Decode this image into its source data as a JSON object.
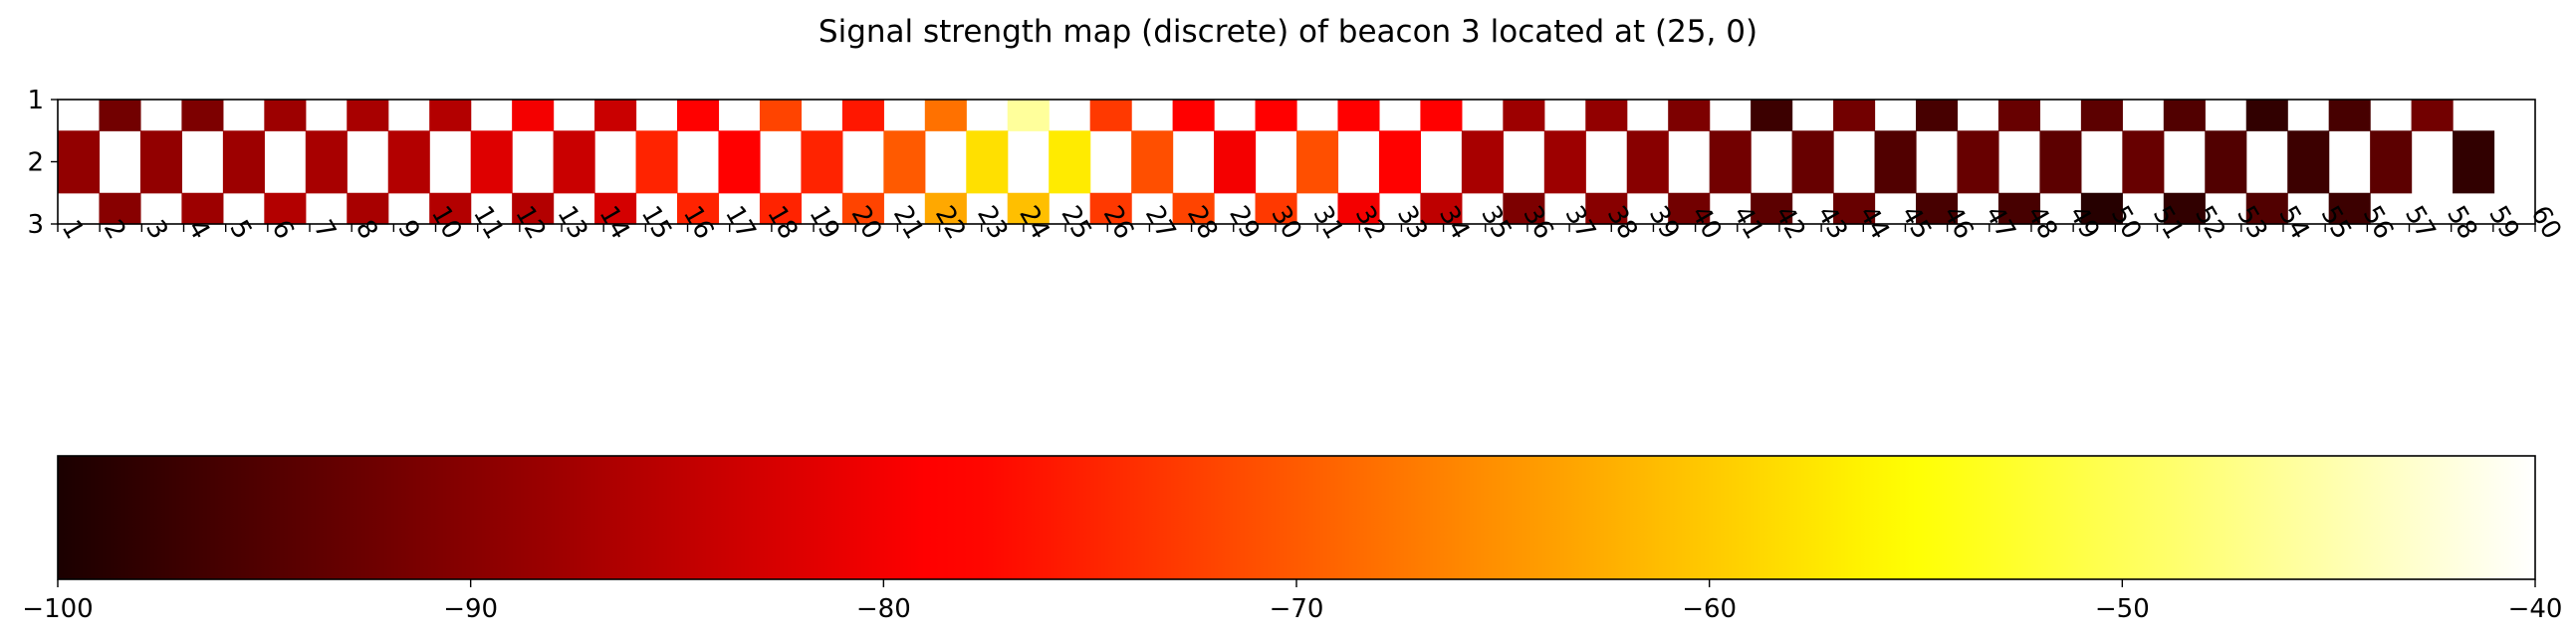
{
  "chart_data": {
    "type": "heatmap",
    "title": "Signal strength map (discrete) of beacon 3 located at (25, 0)",
    "x_ticks": [
      1,
      2,
      3,
      4,
      5,
      6,
      7,
      8,
      9,
      10,
      11,
      12,
      13,
      14,
      15,
      16,
      17,
      18,
      19,
      20,
      21,
      22,
      23,
      24,
      25,
      26,
      27,
      28,
      29,
      30,
      31,
      32,
      33,
      34,
      35,
      36,
      37,
      38,
      39,
      40,
      41,
      42,
      43,
      44,
      45,
      46,
      47,
      48,
      49,
      50,
      51,
      52,
      53,
      54,
      55,
      56,
      57,
      58,
      59,
      60
    ],
    "y_ticks": [
      1,
      2,
      3
    ],
    "rows": [
      [
        null,
        -92,
        null,
        -91,
        null,
        -88,
        null,
        -87,
        null,
        -86,
        null,
        -80,
        null,
        -84,
        null,
        -78,
        null,
        -72,
        null,
        -76,
        null,
        -68,
        null,
        -46,
        null,
        -73,
        null,
        -79,
        null,
        -79,
        null,
        -79,
        null,
        -79,
        null,
        -88,
        null,
        -89,
        null,
        -91,
        null,
        -97,
        null,
        -92,
        null,
        -96,
        null,
        -93,
        null,
        -94,
        null,
        -95,
        null,
        -98,
        null,
        -96,
        null,
        -92,
        null
      ],
      [
        -89,
        null,
        -89,
        null,
        -88,
        null,
        -87,
        null,
        -86,
        null,
        -82,
        null,
        -84,
        null,
        -75,
        null,
        -79,
        null,
        -75,
        null,
        -70,
        null,
        -58,
        null,
        -57,
        null,
        -71,
        null,
        -80,
        null,
        -71,
        null,
        -78,
        null,
        -87,
        null,
        -88,
        null,
        -90,
        null,
        -92,
        null,
        -93,
        null,
        -95,
        null,
        -93,
        null,
        -94,
        null,
        -93,
        null,
        -95,
        null,
        -97,
        null,
        -94,
        null,
        -98
      ],
      [
        null,
        -90,
        null,
        -88,
        null,
        -86,
        null,
        -87,
        null,
        -86,
        null,
        -86,
        null,
        -83,
        null,
        -75,
        null,
        -75,
        null,
        -72,
        null,
        -63,
        null,
        -61,
        null,
        -73,
        null,
        -72,
        null,
        -73,
        null,
        -80,
        null,
        -85,
        null,
        -91,
        null,
        -90,
        null,
        -92,
        null,
        -94,
        null,
        -93,
        null,
        -96,
        null,
        -96,
        null,
        -99,
        null,
        -98,
        null,
        -95,
        null,
        -97,
        null
      ]
    ],
    "colorbar": {
      "vmin": -100,
      "vmax": -40,
      "ticks": [
        -100,
        -90,
        -80,
        -70,
        -60,
        -50,
        -40
      ],
      "tick_labels": [
        "−100",
        "−90",
        "−80",
        "−70",
        "−60",
        "−50",
        "−40"
      ],
      "colormap": "hot"
    },
    "empty_cell_color": "#ffffff"
  }
}
